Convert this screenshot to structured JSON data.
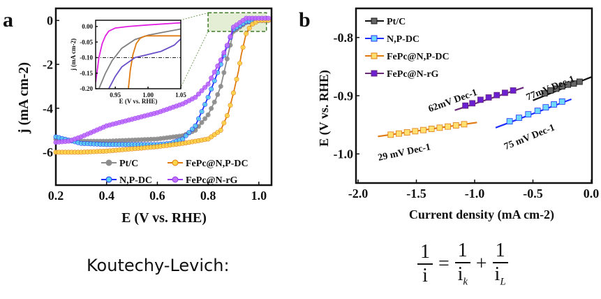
{
  "panel_labels": {
    "a": "a",
    "b": "b"
  },
  "bottom": {
    "label": "Koutechy-Levich:",
    "eq": {
      "one": "1",
      "i": "i",
      "eq": "=",
      "plus": "+",
      "k": "k",
      "L": "L"
    }
  },
  "chart_data": [
    {
      "type": "line",
      "panel": "a",
      "xlabel": "E (V vs. RHE)",
      "ylabel": "j (mA cm-2)",
      "xlim": [
        0.2,
        1.05
      ],
      "ylim": [
        -7.5,
        0.55
      ],
      "xticks": [
        "0.2",
        "0.4",
        "0.6",
        "0.8",
        "1.0"
      ],
      "xtick_values": [
        0.2,
        0.4,
        0.6,
        0.8,
        1.0
      ],
      "yticks": [
        "0",
        "-2",
        "-4",
        "-6"
      ],
      "ytick_values": [
        0,
        -2,
        -4,
        -6
      ],
      "legend": "bottom-right",
      "series": [
        {
          "name": "Pt/C",
          "color": "#8c8c8c",
          "x": [
            0.2,
            0.3,
            0.4,
            0.5,
            0.6,
            0.7,
            0.75,
            0.8,
            0.83,
            0.85,
            0.88,
            0.9,
            0.95,
            1.0,
            1.04
          ],
          "y": [
            -5.4,
            -5.5,
            -5.5,
            -5.45,
            -5.4,
            -5.25,
            -5.0,
            -4.3,
            -3.6,
            -3.0,
            -1.5,
            -0.5,
            -0.1,
            0,
            0
          ]
        },
        {
          "name": "N,P-DC",
          "color": "#1f2fff",
          "fill": "#5ad0f0",
          "x": [
            0.2,
            0.3,
            0.4,
            0.5,
            0.6,
            0.65,
            0.7,
            0.75,
            0.8,
            0.85,
            0.88,
            0.9,
            0.95,
            1.0,
            1.04
          ],
          "y": [
            -5.3,
            -5.6,
            -5.65,
            -5.65,
            -5.65,
            -5.6,
            -5.4,
            -4.8,
            -3.5,
            -2.0,
            -1.0,
            -0.4,
            -0.05,
            0,
            0
          ]
        },
        {
          "name": "FePc@N,P-DC",
          "color": "#e07a10",
          "fill": "#ffd54a",
          "x": [
            0.2,
            0.3,
            0.4,
            0.5,
            0.6,
            0.7,
            0.8,
            0.85,
            0.88,
            0.9,
            0.92,
            0.93,
            0.95,
            0.97,
            1.0,
            1.04
          ],
          "y": [
            -6.0,
            -6.0,
            -5.95,
            -5.85,
            -5.75,
            -5.6,
            -5.4,
            -5.0,
            -4.2,
            -3.3,
            -2.3,
            -1.6,
            -0.6,
            -0.2,
            0,
            0
          ]
        },
        {
          "name": "FePc@N-rG",
          "color": "#9b3df0",
          "fill": "#c070ff",
          "x": [
            0.2,
            0.25,
            0.3,
            0.35,
            0.4,
            0.5,
            0.6,
            0.7,
            0.75,
            0.8,
            0.85,
            0.88,
            0.9,
            0.95,
            1.0,
            1.04
          ],
          "y": [
            -5.55,
            -5.5,
            -5.3,
            -5.05,
            -4.8,
            -4.5,
            -4.2,
            -3.8,
            -3.5,
            -2.9,
            -1.8,
            -1.0,
            -0.3,
            0.1,
            0.1,
            0.1
          ]
        }
      ],
      "inset": {
        "xlabel": "E (V vs. RHE)",
        "ylabel": "j (mA cm-2)",
        "xlim": [
          0.92,
          1.05
        ],
        "ylim": [
          -0.2,
          0.02
        ],
        "xticks": [
          "0.95",
          "1.00",
          "1.05"
        ],
        "xtick_values": [
          0.95,
          1.0,
          1.05
        ],
        "yticks": [
          "0.00",
          "-0.05",
          "-0.10",
          "-0.15",
          "-0.20"
        ],
        "ytick_values": [
          0,
          -0.05,
          -0.1,
          -0.15,
          -0.2
        ],
        "reference_y": -0.1,
        "series": [
          {
            "name": "FePc@N-rG",
            "color": "#e020e0",
            "x": [
              0.92,
              0.925,
              0.93,
              0.935,
              0.94,
              0.95,
              0.97,
              1.0,
              1.05
            ],
            "y": [
              -0.18,
              -0.1,
              -0.055,
              -0.03,
              -0.015,
              -0.005,
              0,
              0.005,
              0.012
            ]
          },
          {
            "name": "Pt/C",
            "color": "#808080",
            "x": [
              0.925,
              0.935,
              0.945,
              0.96,
              0.98,
              1.0,
              1.02,
              1.05
            ],
            "y": [
              -0.2,
              -0.15,
              -0.11,
              -0.07,
              -0.042,
              -0.028,
              -0.02,
              -0.008
            ]
          },
          {
            "name": "FePc@N,P-DC",
            "color": "#e07a10",
            "x": [
              0.97,
              0.973,
              0.977,
              0.982,
              0.988,
              0.995,
              1.0,
              1.05
            ],
            "y": [
              -0.2,
              -0.14,
              -0.09,
              -0.055,
              -0.038,
              -0.031,
              -0.03,
              -0.03
            ]
          },
          {
            "name": "N,P-DC",
            "color": "#6a4fc8",
            "x": [
              0.94,
              0.95,
              0.96,
              0.98,
              1.0,
              1.02,
              1.04,
              1.05
            ],
            "y": [
              -0.2,
              -0.16,
              -0.13,
              -0.1,
              -0.09,
              -0.08,
              -0.06,
              -0.04
            ]
          }
        ]
      }
    },
    {
      "type": "scatter",
      "panel": "b",
      "xlabel": "Current density (mA cm-2)",
      "ylabel": "E (V vs. RHE)",
      "xlim": [
        -2.0,
        0.0
      ],
      "ylim": [
        -1.05,
        -0.75
      ],
      "xticks": [
        "-2.0",
        "-1.5",
        "-1.0",
        "-0.5",
        "0.0"
      ],
      "xtick_values": [
        -2,
        -1.5,
        -1,
        -0.5,
        0
      ],
      "yticks": [
        "-0.8",
        "-0.9",
        "-1.0"
      ],
      "ytick_values": [
        -0.8,
        -0.9,
        -1.0
      ],
      "legend": "top-left",
      "series": [
        {
          "name": "Pt/C",
          "color": "#111111",
          "fill": "#666666",
          "x": [
            -0.4,
            -0.35,
            -0.3,
            -0.25,
            -0.2,
            -0.15,
            -0.1
          ],
          "y": [
            -0.896,
            -0.891,
            -0.888,
            -0.884,
            -0.881,
            -0.879,
            -0.876
          ],
          "fit": [
            [
              -0.5,
              -0.908
            ],
            [
              0.0,
              -0.868
            ]
          ],
          "slope_label": "77mV Dec-1"
        },
        {
          "name": "N,P-DC",
          "color": "#1f2fff",
          "fill": "#70d8f8",
          "x": [
            -0.7,
            -0.62,
            -0.54,
            -0.46,
            -0.39,
            -0.32,
            -0.25
          ],
          "y": [
            -0.944,
            -0.938,
            -0.932,
            -0.926,
            -0.92,
            -0.915,
            -0.91
          ],
          "fit": [
            [
              -0.82,
              -0.955
            ],
            [
              -0.17,
              -0.906
            ]
          ],
          "slope_label": "75 mV Dec-1"
        },
        {
          "name": "FePc@N,P-DC",
          "color": "#e07a10",
          "fill": "#ffe070",
          "x": [
            -1.72,
            -1.65,
            -1.58,
            -1.51,
            -1.44,
            -1.37,
            -1.3,
            -1.23,
            -1.16,
            -1.09
          ],
          "y": [
            -0.967,
            -0.965,
            -0.963,
            -0.961,
            -0.959,
            -0.957,
            -0.955,
            -0.953,
            -0.951,
            -0.949
          ],
          "fit": [
            [
              -1.83,
              -0.97
            ],
            [
              -0.98,
              -0.946
            ]
          ],
          "slope_label": "29 mV Dec-1"
        },
        {
          "name": "FePc@N-rG",
          "color": "#6a2a7a",
          "fill": "#6a1fd0",
          "x": [
            -1.08,
            -1.02,
            -0.95,
            -0.88,
            -0.81,
            -0.74,
            -0.67
          ],
          "y": [
            -0.917,
            -0.913,
            -0.907,
            -0.903,
            -0.899,
            -0.895,
            -0.891
          ],
          "fit": [
            [
              -1.17,
              -0.925
            ],
            [
              -0.58,
              -0.886
            ]
          ],
          "slope_label": "62mV Dec-1"
        }
      ]
    }
  ]
}
